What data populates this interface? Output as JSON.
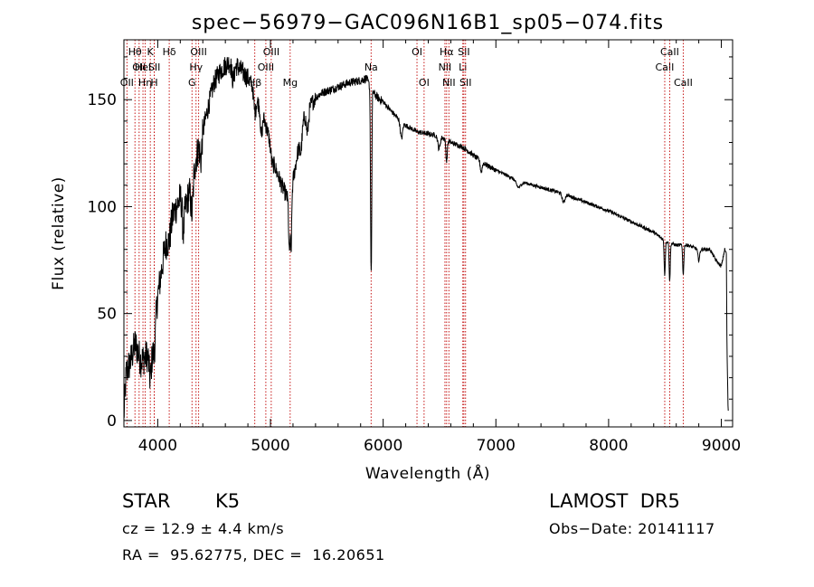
{
  "chart_data": {
    "type": "line",
    "title": "spec−56979−GAC096N16B1_sp05−074.fits",
    "xlabel": "Wavelength (Å)",
    "ylabel": "Flux (relative)",
    "xlim": [
      3700,
      9100
    ],
    "ylim": [
      -3,
      178
    ],
    "xticks": [
      4000,
      5000,
      6000,
      7000,
      8000,
      9000
    ],
    "yticks": [
      0,
      50,
      100,
      150
    ],
    "grid": false,
    "line_color": "#000000",
    "marker_color": "#c00000",
    "spectral_lines": [
      {
        "wl": 3727,
        "label": "OII",
        "row": 2
      },
      {
        "wl": 3798,
        "label": "Hθ",
        "row": 0
      },
      {
        "wl": 3835,
        "label": "OII",
        "row": 1
      },
      {
        "wl": 3869,
        "label": "Hel",
        "row": 1
      },
      {
        "wl": 3889,
        "label": "Hη",
        "row": 2
      },
      {
        "wl": 3934,
        "label": "K",
        "row": 0
      },
      {
        "wl": 3969,
        "label": "H",
        "row": 2
      },
      {
        "wl": 3970,
        "label": "SII",
        "row": 1
      },
      {
        "wl": 4102,
        "label": "Hδ",
        "row": 0
      },
      {
        "wl": 4304,
        "label": "G",
        "row": 2
      },
      {
        "wl": 4340,
        "label": "Hγ",
        "row": 1
      },
      {
        "wl": 4363,
        "label": "OIII",
        "row": 0
      },
      {
        "wl": 4861,
        "label": "Hβ",
        "row": 2
      },
      {
        "wl": 4959,
        "label": "OIII",
        "row": 1
      },
      {
        "wl": 5007,
        "label": "OIII",
        "row": 0
      },
      {
        "wl": 5175,
        "label": "Mg",
        "row": 2
      },
      {
        "wl": 5893,
        "label": "Na",
        "row": 1
      },
      {
        "wl": 6300,
        "label": "OI",
        "row": 0
      },
      {
        "wl": 6363,
        "label": "OI",
        "row": 2
      },
      {
        "wl": 6548,
        "label": "NII",
        "row": 1
      },
      {
        "wl": 6563,
        "label": "Hα",
        "row": 0
      },
      {
        "wl": 6583,
        "label": "NII",
        "row": 2
      },
      {
        "wl": 6707,
        "label": "Li",
        "row": 1
      },
      {
        "wl": 6716,
        "label": "SII",
        "row": 0
      },
      {
        "wl": 6731,
        "label": "SII",
        "row": 2
      },
      {
        "wl": 8498,
        "label": "CaII",
        "row": 1
      },
      {
        "wl": 8542,
        "label": "CaII",
        "row": 0
      },
      {
        "wl": 8662,
        "label": "CaII",
        "row": 2
      }
    ],
    "continuum": [
      [
        3700,
        2
      ],
      [
        3720,
        22
      ],
      [
        3760,
        28
      ],
      [
        3800,
        36
      ],
      [
        3850,
        28
      ],
      [
        3900,
        30
      ],
      [
        3950,
        35
      ],
      [
        4000,
        58
      ],
      [
        4050,
        76
      ],
      [
        4100,
        92
      ],
      [
        4150,
        98
      ],
      [
        4200,
        104
      ],
      [
        4250,
        100
      ],
      [
        4300,
        112
      ],
      [
        4350,
        125
      ],
      [
        4400,
        135
      ],
      [
        4450,
        147
      ],
      [
        4500,
        158
      ],
      [
        4550,
        163
      ],
      [
        4600,
        166
      ],
      [
        4650,
        168
      ],
      [
        4700,
        166
      ],
      [
        4750,
        163
      ],
      [
        4800,
        160
      ],
      [
        4850,
        156
      ],
      [
        4900,
        147
      ],
      [
        4950,
        140
      ],
      [
        5000,
        130
      ],
      [
        5050,
        117
      ],
      [
        5100,
        110
      ],
      [
        5150,
        104
      ],
      [
        5200,
        112
      ],
      [
        5250,
        128
      ],
      [
        5300,
        142
      ],
      [
        5350,
        147
      ],
      [
        5400,
        151
      ],
      [
        5450,
        153
      ],
      [
        5500,
        154
      ],
      [
        5600,
        156
      ],
      [
        5700,
        158
      ],
      [
        5800,
        159
      ],
      [
        5850,
        160
      ],
      [
        5900,
        154
      ],
      [
        5950,
        151
      ],
      [
        6000,
        149
      ],
      [
        6050,
        146
      ],
      [
        6100,
        143
      ],
      [
        6200,
        138
      ],
      [
        6300,
        135
      ],
      [
        6400,
        134
      ],
      [
        6500,
        133
      ],
      [
        6600,
        130
      ],
      [
        6700,
        128
      ],
      [
        6800,
        124
      ],
      [
        6900,
        120
      ],
      [
        7000,
        117
      ],
      [
        7200,
        112
      ],
      [
        7400,
        109
      ],
      [
        7600,
        106
      ],
      [
        7800,
        102
      ],
      [
        8000,
        98
      ],
      [
        8200,
        93
      ],
      [
        8400,
        88
      ],
      [
        8500,
        84
      ],
      [
        8600,
        82
      ],
      [
        8700,
        82
      ],
      [
        8800,
        80
      ],
      [
        8900,
        80
      ],
      [
        8950,
        75
      ],
      [
        9000,
        72
      ],
      [
        9030,
        80
      ],
      [
        9045,
        78
      ],
      [
        9050,
        35
      ],
      [
        9060,
        5
      ]
    ],
    "absorption_features": [
      [
        3934,
        14,
        10
      ],
      [
        3969,
        12,
        10
      ],
      [
        4102,
        8,
        14
      ],
      [
        4227,
        14,
        8
      ],
      [
        4304,
        16,
        10
      ],
      [
        4383,
        10,
        8
      ],
      [
        4668,
        8,
        12
      ],
      [
        4861,
        10,
        10
      ],
      [
        4920,
        12,
        8
      ],
      [
        5015,
        6,
        12
      ],
      [
        5167,
        28,
        6
      ],
      [
        5183,
        30,
        6
      ],
      [
        5270,
        8,
        10
      ],
      [
        5328,
        10,
        10
      ],
      [
        5890,
        52,
        4
      ],
      [
        5896,
        62,
        4
      ],
      [
        6162,
        8,
        10
      ],
      [
        6495,
        6,
        10
      ],
      [
        6563,
        10,
        6
      ],
      [
        6870,
        5,
        8
      ],
      [
        7200,
        3,
        20
      ],
      [
        7600,
        4,
        12
      ],
      [
        8498,
        16,
        5
      ],
      [
        8542,
        18,
        5
      ],
      [
        8662,
        14,
        5
      ],
      [
        8800,
        5,
        8
      ]
    ]
  },
  "info": {
    "object_class": "STAR",
    "subclass": "K5",
    "survey": "LAMOST  DR5",
    "redshift": "cz = 12.9 ± 4.4 km/s",
    "obs_date": "Obs−Date: 20141117",
    "coords": "RA =  95.62775, DEC =  16.20651"
  }
}
